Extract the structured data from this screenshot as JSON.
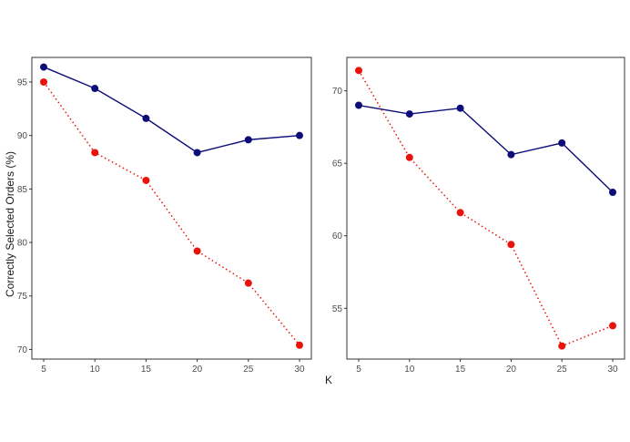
{
  "chart_data": {
    "type": "line",
    "ylabel": "Correctly Selected Orders (%)",
    "xlabel": "K",
    "colors": {
      "blue": "#0d0d7a",
      "red": "#e8140c"
    },
    "panels": [
      {
        "x": [
          5,
          10,
          15,
          20,
          25,
          30
        ],
        "ylim": [
          69.1,
          97.3
        ],
        "yticks": [
          70,
          75,
          80,
          85,
          90,
          95
        ],
        "series": [
          {
            "color": "#0d0d7a",
            "line_style": "solid",
            "values": [
              96.4,
              94.4,
              91.6,
              88.4,
              89.6,
              90.0
            ]
          },
          {
            "color": "#e8140c",
            "line_style": "dotted",
            "values": [
              95.0,
              88.4,
              85.8,
              79.2,
              76.2,
              70.4
            ]
          }
        ]
      },
      {
        "x": [
          5,
          10,
          15,
          20,
          25,
          30
        ],
        "ylim": [
          51.5,
          72.3
        ],
        "yticks": [
          55,
          60,
          65,
          70
        ],
        "series": [
          {
            "color": "#0d0d7a",
            "line_style": "solid",
            "values": [
              69.0,
              68.4,
              68.8,
              65.6,
              66.4,
              63.0
            ]
          },
          {
            "color": "#e8140c",
            "line_style": "dotted",
            "values": [
              71.4,
              65.4,
              61.6,
              59.4,
              52.4,
              53.8
            ]
          }
        ]
      }
    ],
    "xticks": [
      5,
      10,
      15,
      20,
      25,
      30
    ],
    "grid": false,
    "legend": "none"
  }
}
